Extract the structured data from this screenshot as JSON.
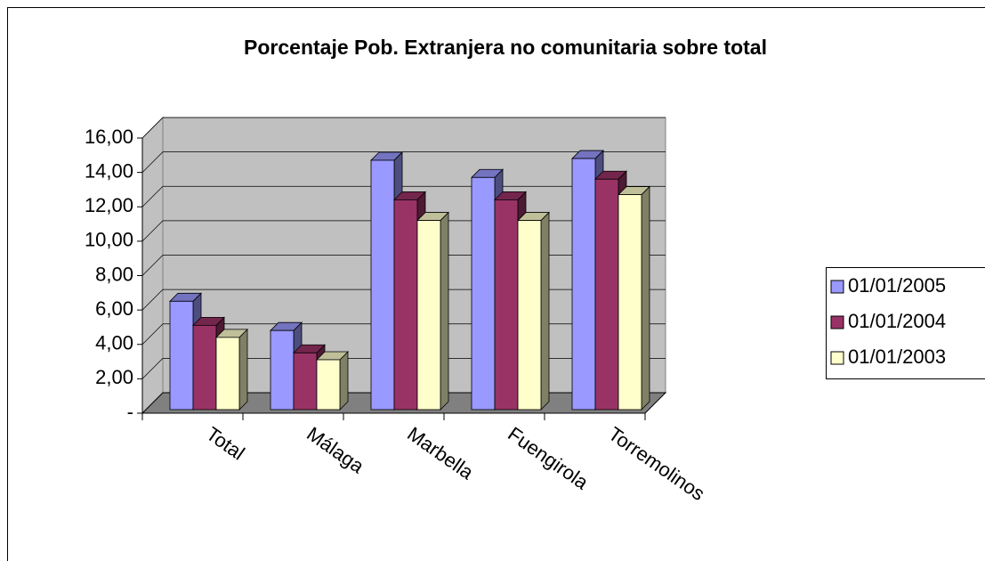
{
  "chart_data": {
    "type": "bar3d",
    "title": "Porcentaje Pob. Extranjera no comunitaria sobre total",
    "categories": [
      "Total",
      "Málaga",
      "Marbella",
      "Fuengirola",
      "Torremolinos"
    ],
    "series": [
      {
        "name": "01/01/2005",
        "color": "#9999ff",
        "values": [
          6.3,
          4.6,
          14.5,
          13.5,
          14.6
        ]
      },
      {
        "name": "01/01/2004",
        "color": "#993366",
        "values": [
          4.9,
          3.3,
          12.2,
          12.2,
          13.4
        ]
      },
      {
        "name": "01/01/2003",
        "color": "#ffffcc",
        "values": [
          4.2,
          2.9,
          11.0,
          11.0,
          12.5
        ]
      }
    ],
    "ylim": [
      0,
      16
    ],
    "yticks": [
      {
        "value": 0,
        "label": "-"
      },
      {
        "value": 2,
        "label": "2,00"
      },
      {
        "value": 4,
        "label": "4,00"
      },
      {
        "value": 6,
        "label": "6,00"
      },
      {
        "value": 8,
        "label": "8,00"
      },
      {
        "value": 10,
        "label": "10,00"
      },
      {
        "value": 12,
        "label": "12,00"
      },
      {
        "value": 14,
        "label": "14,00"
      },
      {
        "value": 16,
        "label": "16,00"
      }
    ],
    "grid": true,
    "legend": "right"
  }
}
